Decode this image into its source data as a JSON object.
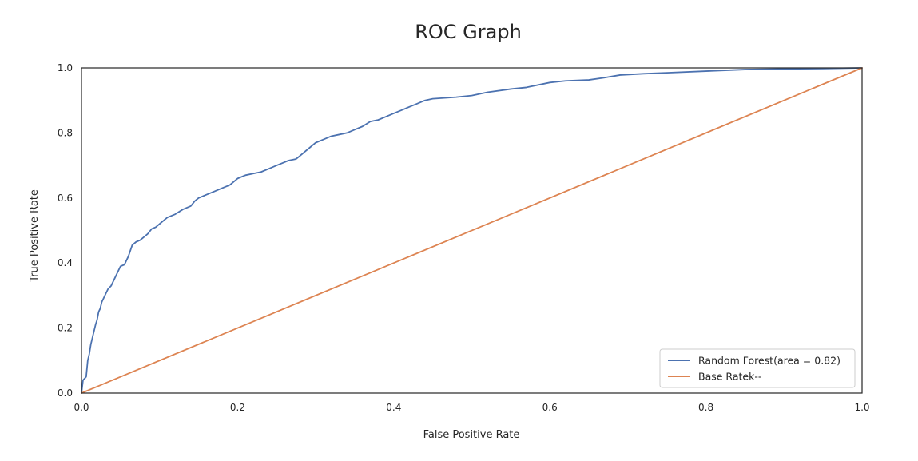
{
  "chart_data": {
    "type": "line",
    "title": "ROC Graph",
    "xlabel": "False Positive Rate",
    "ylabel": "True Positive Rate",
    "xlim": [
      0.0,
      1.0
    ],
    "ylim": [
      0.0,
      1.0
    ],
    "xticks": [
      0.0,
      0.2,
      0.4,
      0.6,
      0.8,
      1.0
    ],
    "xtick_labels": [
      "0.0",
      "0.2",
      "0.4",
      "0.6",
      "0.8",
      "1.0"
    ],
    "yticks": [
      0.0,
      0.2,
      0.4,
      0.6,
      0.8,
      1.0
    ],
    "ytick_labels": [
      "0.0",
      "0.2",
      "0.4",
      "0.6",
      "0.8",
      "1.0"
    ],
    "grid": false,
    "legend": "lower-right",
    "series": [
      {
        "name": "Random Forest(area = 0.82)",
        "color": "#4c72b0",
        "x": [
          0.0,
          0.002,
          0.004,
          0.006,
          0.008,
          0.01,
          0.012,
          0.014,
          0.016,
          0.018,
          0.02,
          0.022,
          0.024,
          0.026,
          0.028,
          0.03,
          0.034,
          0.038,
          0.042,
          0.046,
          0.05,
          0.055,
          0.06,
          0.065,
          0.07,
          0.075,
          0.08,
          0.085,
          0.09,
          0.095,
          0.1,
          0.11,
          0.12,
          0.13,
          0.14,
          0.145,
          0.15,
          0.16,
          0.17,
          0.18,
          0.19,
          0.2,
          0.21,
          0.22,
          0.23,
          0.24,
          0.25,
          0.26,
          0.265,
          0.275,
          0.28,
          0.29,
          0.3,
          0.31,
          0.32,
          0.33,
          0.34,
          0.35,
          0.36,
          0.37,
          0.38,
          0.39,
          0.4,
          0.41,
          0.42,
          0.43,
          0.44,
          0.45,
          0.48,
          0.5,
          0.52,
          0.55,
          0.57,
          0.6,
          0.62,
          0.65,
          0.67,
          0.69,
          0.72,
          0.75,
          0.8,
          0.85,
          0.9,
          0.95,
          1.0
        ],
        "y": [
          0.0,
          0.04,
          0.045,
          0.05,
          0.1,
          0.12,
          0.15,
          0.17,
          0.19,
          0.21,
          0.225,
          0.25,
          0.26,
          0.28,
          0.29,
          0.3,
          0.32,
          0.33,
          0.35,
          0.37,
          0.39,
          0.395,
          0.42,
          0.455,
          0.465,
          0.47,
          0.48,
          0.49,
          0.505,
          0.51,
          0.52,
          0.54,
          0.55,
          0.565,
          0.575,
          0.59,
          0.6,
          0.61,
          0.62,
          0.63,
          0.64,
          0.66,
          0.67,
          0.675,
          0.68,
          0.69,
          0.7,
          0.71,
          0.715,
          0.72,
          0.73,
          0.75,
          0.77,
          0.78,
          0.79,
          0.795,
          0.8,
          0.81,
          0.82,
          0.835,
          0.84,
          0.85,
          0.86,
          0.87,
          0.88,
          0.89,
          0.9,
          0.905,
          0.91,
          0.915,
          0.925,
          0.935,
          0.94,
          0.955,
          0.96,
          0.963,
          0.97,
          0.978,
          0.982,
          0.985,
          0.99,
          0.995,
          0.997,
          0.998,
          1.0
        ]
      },
      {
        "name": "Base Ratek--",
        "color": "#dd8452",
        "x": [
          0.0,
          1.0
        ],
        "y": [
          0.0,
          1.0
        ]
      }
    ]
  }
}
